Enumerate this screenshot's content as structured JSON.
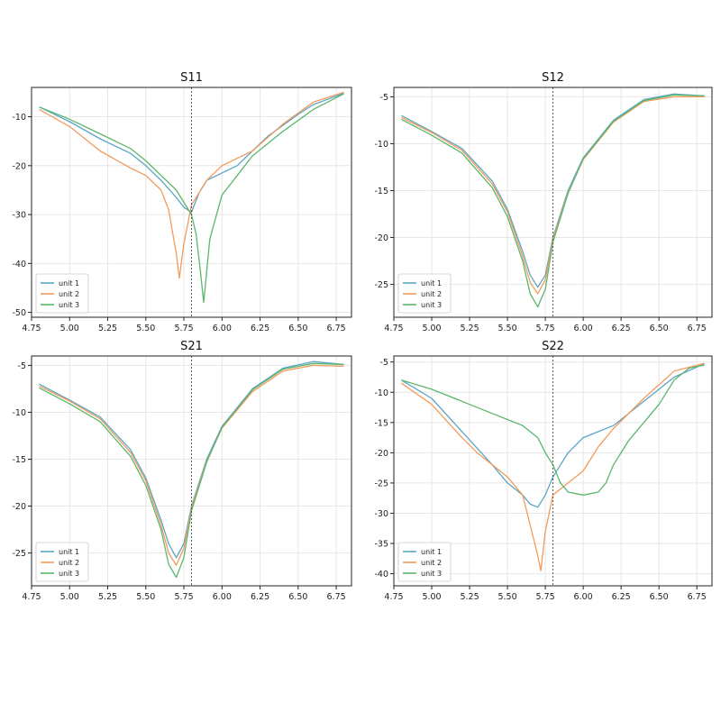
{
  "colors": {
    "unit1": "#5aa6c8",
    "unit2": "#f29b5c",
    "unit3": "#5cb66b",
    "grid": "#e6e6e6",
    "axis": "#222222",
    "marker": "#555555"
  },
  "chart_data": [
    {
      "type": "line",
      "title": "S11",
      "xlabel": "",
      "ylabel": "",
      "xlim": [
        4.75,
        6.85
      ],
      "ylim": [
        -51,
        -4
      ],
      "xticks": [
        4.75,
        5.0,
        5.25,
        5.5,
        5.75,
        6.0,
        6.25,
        6.5,
        6.75
      ],
      "xtick_labels": [
        "4.75",
        "5.00",
        "5.25",
        "5.50",
        "5.75",
        "6.00",
        "6.25",
        "6.50",
        "6.75"
      ],
      "yticks": [
        -10,
        -20,
        -30,
        -40,
        -50
      ],
      "ytick_labels": [
        "-10",
        "-20",
        "-30",
        "-40",
        "-50"
      ],
      "vline": 5.8,
      "grid": true,
      "legend": "lower-left",
      "series": [
        {
          "name": "unit 1",
          "color_key": "unit1",
          "x": [
            4.8,
            5.0,
            5.2,
            5.4,
            5.5,
            5.6,
            5.7,
            5.75,
            5.8,
            5.85,
            5.9,
            6.0,
            6.1,
            6.2,
            6.3,
            6.5,
            6.6,
            6.8
          ],
          "y": [
            -8,
            -11,
            -14.5,
            -17.5,
            -20,
            -23,
            -26.5,
            -28.5,
            -29.5,
            -25.5,
            -23,
            -21.5,
            -20,
            -17,
            -14,
            -9.5,
            -7.5,
            -5.2
          ]
        },
        {
          "name": "unit 2",
          "color_key": "unit2",
          "x": [
            4.8,
            5.0,
            5.2,
            5.4,
            5.5,
            5.6,
            5.65,
            5.7,
            5.72,
            5.75,
            5.8,
            5.85,
            5.9,
            6.0,
            6.2,
            6.4,
            6.6,
            6.8
          ],
          "y": [
            -8.5,
            -12,
            -17,
            -20.5,
            -22,
            -25,
            -29,
            -38,
            -43,
            -36,
            -28,
            -25.5,
            -23,
            -20,
            -17,
            -11.5,
            -7,
            -5
          ]
        },
        {
          "name": "unit 3",
          "color_key": "unit3",
          "x": [
            4.8,
            5.0,
            5.2,
            5.4,
            5.5,
            5.6,
            5.7,
            5.75,
            5.8,
            5.83,
            5.86,
            5.88,
            5.92,
            6.0,
            6.1,
            6.2,
            6.4,
            6.6,
            6.8
          ],
          "y": [
            -8,
            -10.5,
            -13.5,
            -16.5,
            -19,
            -22,
            -25,
            -27.5,
            -30,
            -34,
            -42,
            -48,
            -35,
            -26,
            -22,
            -18,
            -13,
            -8.5,
            -5.3
          ]
        }
      ]
    },
    {
      "type": "line",
      "title": "S12",
      "xlabel": "",
      "ylabel": "",
      "xlim": [
        4.75,
        6.85
      ],
      "ylim": [
        -28.5,
        -4
      ],
      "xticks": [
        4.75,
        5.0,
        5.25,
        5.5,
        5.75,
        6.0,
        6.25,
        6.5,
        6.75
      ],
      "xtick_labels": [
        "4.75",
        "5.00",
        "5.25",
        "5.50",
        "5.75",
        "6.00",
        "6.25",
        "6.50",
        "6.75"
      ],
      "yticks": [
        -5,
        -10,
        -15,
        -20,
        -25
      ],
      "ytick_labels": [
        "-5",
        "-10",
        "-15",
        "-20",
        "-25"
      ],
      "vline": 5.8,
      "grid": true,
      "legend": "lower-left",
      "series": [
        {
          "name": "unit 1",
          "color_key": "unit1",
          "x": [
            4.8,
            5.0,
            5.2,
            5.4,
            5.5,
            5.6,
            5.65,
            5.7,
            5.75,
            5.8,
            5.9,
            6.0,
            6.2,
            6.4,
            6.6,
            6.8
          ],
          "y": [
            -7,
            -8.7,
            -10.5,
            -14,
            -17,
            -21.5,
            -24,
            -25.3,
            -24,
            -20,
            -15,
            -11.5,
            -7.5,
            -5.3,
            -4.7,
            -4.9
          ]
        },
        {
          "name": "unit 2",
          "color_key": "unit2",
          "x": [
            4.8,
            5.0,
            5.2,
            5.4,
            5.5,
            5.6,
            5.65,
            5.7,
            5.75,
            5.8,
            5.9,
            6.0,
            6.2,
            6.4,
            6.6,
            6.8
          ],
          "y": [
            -7.2,
            -8.8,
            -10.7,
            -14.3,
            -17.3,
            -22,
            -24.8,
            -26,
            -24.5,
            -20.2,
            -15.2,
            -11.7,
            -7.7,
            -5.5,
            -5,
            -5
          ]
        },
        {
          "name": "unit 3",
          "color_key": "unit3",
          "x": [
            4.8,
            5.0,
            5.2,
            5.4,
            5.5,
            5.6,
            5.65,
            5.7,
            5.75,
            5.8,
            5.9,
            6.0,
            6.2,
            6.4,
            6.6,
            6.8
          ],
          "y": [
            -7.4,
            -9.1,
            -11,
            -14.7,
            -17.8,
            -22.5,
            -26,
            -27.4,
            -25.5,
            -20.5,
            -15.3,
            -11.6,
            -7.6,
            -5.4,
            -4.8,
            -4.9
          ]
        }
      ]
    },
    {
      "type": "line",
      "title": "S21",
      "xlabel": "",
      "ylabel": "",
      "xlim": [
        4.75,
        6.85
      ],
      "ylim": [
        -28.5,
        -4
      ],
      "xticks": [
        4.75,
        5.0,
        5.25,
        5.5,
        5.75,
        6.0,
        6.25,
        6.5,
        6.75
      ],
      "xtick_labels": [
        "4.75",
        "5.00",
        "5.25",
        "5.50",
        "5.75",
        "6.00",
        "6.25",
        "6.50",
        "6.75"
      ],
      "yticks": [
        -5,
        -10,
        -15,
        -20,
        -25
      ],
      "ytick_labels": [
        "-5",
        "-10",
        "-15",
        "-20",
        "-25"
      ],
      "vline": 5.8,
      "grid": true,
      "legend": "lower-left",
      "series": [
        {
          "name": "unit 1",
          "color_key": "unit1",
          "x": [
            4.8,
            5.0,
            5.2,
            5.4,
            5.5,
            5.6,
            5.65,
            5.7,
            5.75,
            5.8,
            5.9,
            6.0,
            6.2,
            6.4,
            6.6,
            6.8
          ],
          "y": [
            -7,
            -8.7,
            -10.5,
            -14,
            -17,
            -21.5,
            -24,
            -25.5,
            -24,
            -20,
            -15,
            -11.5,
            -7.5,
            -5.3,
            -4.6,
            -4.9
          ]
        },
        {
          "name": "unit 2",
          "color_key": "unit2",
          "x": [
            4.8,
            5.0,
            5.2,
            5.4,
            5.5,
            5.6,
            5.65,
            5.7,
            5.75,
            5.8,
            5.9,
            6.0,
            6.2,
            6.4,
            6.6,
            6.8
          ],
          "y": [
            -7.2,
            -8.8,
            -10.7,
            -14.3,
            -17.3,
            -22,
            -25,
            -26.3,
            -24.5,
            -20.2,
            -15.2,
            -11.7,
            -7.8,
            -5.6,
            -5,
            -5.1
          ]
        },
        {
          "name": "unit 3",
          "color_key": "unit3",
          "x": [
            4.8,
            5.0,
            5.2,
            5.4,
            5.5,
            5.6,
            5.65,
            5.7,
            5.75,
            5.8,
            5.9,
            6.0,
            6.2,
            6.4,
            6.6,
            6.8
          ],
          "y": [
            -7.4,
            -9.1,
            -11,
            -14.7,
            -17.8,
            -22.5,
            -26.2,
            -27.6,
            -25.5,
            -20.5,
            -15.3,
            -11.6,
            -7.6,
            -5.4,
            -4.8,
            -4.9
          ]
        }
      ]
    },
    {
      "type": "line",
      "title": "S22",
      "xlabel": "",
      "ylabel": "",
      "xlim": [
        4.75,
        6.85
      ],
      "ylim": [
        -42,
        -4
      ],
      "xticks": [
        4.75,
        5.0,
        5.25,
        5.5,
        5.75,
        6.0,
        6.25,
        6.5,
        6.75
      ],
      "xtick_labels": [
        "4.75",
        "5.00",
        "5.25",
        "5.50",
        "5.75",
        "6.00",
        "6.25",
        "6.50",
        "6.75"
      ],
      "yticks": [
        -5,
        -10,
        -15,
        -20,
        -25,
        -30,
        -35,
        -40
      ],
      "ytick_labels": [
        "-5",
        "-10",
        "-15",
        "-20",
        "-25",
        "-30",
        "-35",
        "-40"
      ],
      "vline": 5.8,
      "grid": true,
      "legend": "lower-left",
      "series": [
        {
          "name": "unit 1",
          "color_key": "unit1",
          "x": [
            4.8,
            5.0,
            5.2,
            5.4,
            5.5,
            5.6,
            5.65,
            5.7,
            5.75,
            5.8,
            5.9,
            6.0,
            6.1,
            6.2,
            6.4,
            6.6,
            6.8
          ],
          "y": [
            -8,
            -11,
            -16.5,
            -22,
            -25,
            -27,
            -28.5,
            -29,
            -27,
            -24,
            -20,
            -17.5,
            -16.5,
            -15.5,
            -11.5,
            -7.5,
            -5.3
          ]
        },
        {
          "name": "unit 2",
          "color_key": "unit2",
          "x": [
            4.8,
            5.0,
            5.2,
            5.3,
            5.4,
            5.5,
            5.6,
            5.65,
            5.7,
            5.72,
            5.75,
            5.8,
            5.85,
            5.9,
            6.0,
            6.1,
            6.2,
            6.4,
            6.6,
            6.8
          ],
          "y": [
            -8.5,
            -12,
            -17.5,
            -20,
            -22,
            -24,
            -27,
            -32,
            -37,
            -39.5,
            -33,
            -27,
            -26,
            -25,
            -23,
            -19,
            -16,
            -11,
            -6.5,
            -5.2
          ]
        },
        {
          "name": "unit 3",
          "color_key": "unit3",
          "x": [
            4.8,
            5.0,
            5.2,
            5.4,
            5.5,
            5.6,
            5.7,
            5.75,
            5.8,
            5.85,
            5.9,
            6.0,
            6.1,
            6.15,
            6.2,
            6.3,
            6.4,
            6.5,
            6.6,
            6.7,
            6.8
          ],
          "y": [
            -8,
            -9.5,
            -11.5,
            -13.5,
            -14.5,
            -15.5,
            -17.5,
            -20,
            -22,
            -25,
            -26.5,
            -27,
            -26.5,
            -25,
            -22,
            -18,
            -15,
            -12,
            -8,
            -6,
            -5.5
          ]
        }
      ]
    }
  ]
}
